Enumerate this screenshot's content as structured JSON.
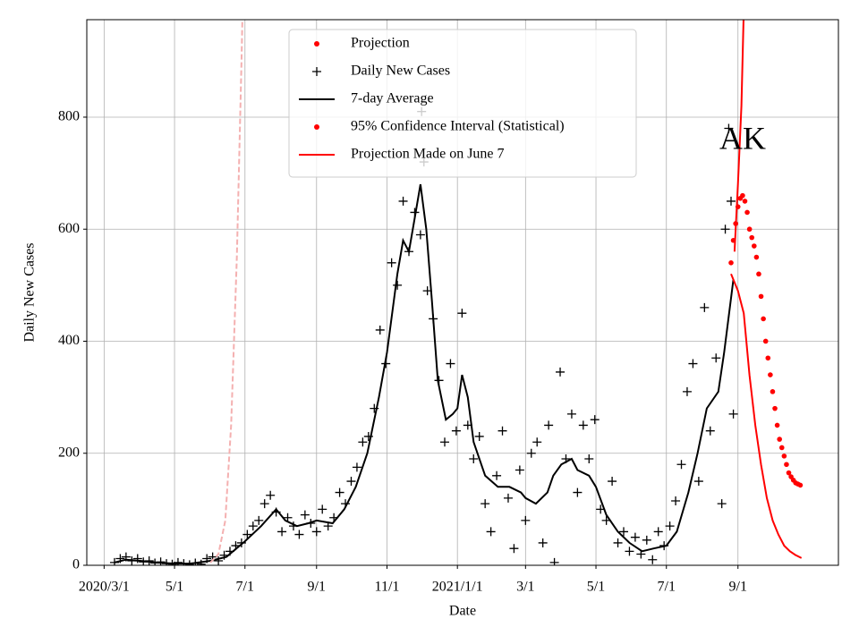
{
  "chart_data": {
    "type": "line",
    "xlabel": "Date",
    "ylabel": "Daily New Cases",
    "annotation": "AK",
    "grid": true,
    "legend": "upper center",
    "xlim": [
      "2020-02-15",
      "2021-11-27"
    ],
    "ylim": [
      0,
      974
    ],
    "yticks": [
      0,
      200,
      400,
      600,
      800
    ],
    "xticks": [
      {
        "value": "2020-03-01",
        "label": "2020/3/1"
      },
      {
        "value": "2020-05-01",
        "label": "5/1"
      },
      {
        "value": "2020-07-01",
        "label": "7/1"
      },
      {
        "value": "2020-09-01",
        "label": "9/1"
      },
      {
        "value": "2020-11-01",
        "label": "11/1"
      },
      {
        "value": "2021-01-01",
        "label": "2021/1/1"
      },
      {
        "value": "2021-03-01",
        "label": "3/1"
      },
      {
        "value": "2021-05-01",
        "label": "5/1"
      },
      {
        "value": "2021-07-01",
        "label": "7/1"
      },
      {
        "value": "2021-09-01",
        "label": "9/1"
      }
    ],
    "series": [
      {
        "name": "Projection",
        "color": "#ff0000",
        "kind": "marker",
        "marker": "dot",
        "x": [
          "2021-08-26",
          "2021-08-28",
          "2021-08-30",
          "2021-09-01",
          "2021-09-03",
          "2021-09-05",
          "2021-09-07",
          "2021-09-09",
          "2021-09-11",
          "2021-09-13",
          "2021-09-15",
          "2021-09-17",
          "2021-09-19",
          "2021-09-21",
          "2021-09-23",
          "2021-09-25",
          "2021-09-27",
          "2021-09-29",
          "2021-10-01",
          "2021-10-03",
          "2021-10-05",
          "2021-10-07",
          "2021-10-09",
          "2021-10-11",
          "2021-10-13",
          "2021-10-15",
          "2021-10-17",
          "2021-10-19",
          "2021-10-21",
          "2021-10-23",
          "2021-10-25"
        ],
        "values": [
          540,
          580,
          610,
          640,
          655,
          660,
          650,
          630,
          600,
          585,
          570,
          550,
          520,
          480,
          440,
          400,
          370,
          340,
          310,
          280,
          250,
          225,
          210,
          195,
          180,
          165,
          158,
          152,
          147,
          145,
          143
        ]
      },
      {
        "name": "Daily New Cases",
        "color": "#000000",
        "kind": "marker",
        "marker": "plus",
        "x": [
          "2020-03-10",
          "2020-03-15",
          "2020-03-20",
          "2020-03-25",
          "2020-03-30",
          "2020-04-04",
          "2020-04-09",
          "2020-04-14",
          "2020-04-19",
          "2020-04-24",
          "2020-04-29",
          "2020-05-04",
          "2020-05-09",
          "2020-05-14",
          "2020-05-19",
          "2020-05-24",
          "2020-05-29",
          "2020-06-03",
          "2020-06-08",
          "2020-06-13",
          "2020-06-18",
          "2020-06-23",
          "2020-06-28",
          "2020-07-03",
          "2020-07-08",
          "2020-07-13",
          "2020-07-18",
          "2020-07-23",
          "2020-07-28",
          "2020-08-02",
          "2020-08-07",
          "2020-08-12",
          "2020-08-17",
          "2020-08-22",
          "2020-08-27",
          "2020-09-01",
          "2020-09-06",
          "2020-09-11",
          "2020-09-16",
          "2020-09-21",
          "2020-09-26",
          "2020-10-01",
          "2020-10-06",
          "2020-10-11",
          "2020-10-16",
          "2020-10-21",
          "2020-10-26",
          "2020-10-31",
          "2020-11-05",
          "2020-11-10",
          "2020-11-15",
          "2020-11-20",
          "2020-11-25",
          "2020-11-30",
          "2020-12-01",
          "2020-12-03",
          "2020-12-06",
          "2020-12-11",
          "2020-12-16",
          "2020-12-21",
          "2020-12-26",
          "2020-12-31",
          "2021-01-05",
          "2021-01-10",
          "2021-01-15",
          "2021-01-20",
          "2021-01-25",
          "2021-01-30",
          "2021-02-04",
          "2021-02-09",
          "2021-02-14",
          "2021-02-19",
          "2021-02-24",
          "2021-03-01",
          "2021-03-06",
          "2021-03-11",
          "2021-03-16",
          "2021-03-21",
          "2021-03-26",
          "2021-03-31",
          "2021-04-05",
          "2021-04-10",
          "2021-04-15",
          "2021-04-20",
          "2021-04-25",
          "2021-04-30",
          "2021-05-05",
          "2021-05-10",
          "2021-05-15",
          "2021-05-20",
          "2021-05-25",
          "2021-05-30",
          "2021-06-04",
          "2021-06-09",
          "2021-06-14",
          "2021-06-19",
          "2021-06-24",
          "2021-06-29",
          "2021-07-04",
          "2021-07-09",
          "2021-07-14",
          "2021-07-19",
          "2021-07-24",
          "2021-07-29",
          "2021-08-03",
          "2021-08-08",
          "2021-08-13",
          "2021-08-18",
          "2021-08-21",
          "2021-08-24",
          "2021-08-26",
          "2021-08-28"
        ],
        "values": [
          5,
          12,
          15,
          8,
          12,
          6,
          8,
          4,
          6,
          3,
          2,
          5,
          3,
          1,
          4,
          2,
          12,
          15,
          8,
          18,
          25,
          35,
          40,
          55,
          70,
          80,
          110,
          125,
          95,
          60,
          85,
          70,
          55,
          90,
          75,
          60,
          100,
          70,
          85,
          130,
          110,
          150,
          175,
          220,
          230,
          280,
          420,
          360,
          540,
          500,
          650,
          560,
          630,
          590,
          810,
          720,
          490,
          440,
          330,
          220,
          360,
          240,
          450,
          250,
          190,
          230,
          110,
          60,
          160,
          240,
          120,
          30,
          170,
          80,
          200,
          220,
          40,
          250,
          5,
          345,
          190,
          270,
          130,
          250,
          190,
          260,
          100,
          80,
          150,
          40,
          60,
          25,
          50,
          20,
          45,
          10,
          60,
          35,
          70,
          115,
          180,
          310,
          360,
          150,
          460,
          240,
          370,
          110,
          600,
          780,
          650,
          270
        ]
      },
      {
        "name": "7-day Average",
        "color": "#000000",
        "kind": "line",
        "x": [
          "2020-03-10",
          "2020-03-20",
          "2020-04-01",
          "2020-04-15",
          "2020-05-01",
          "2020-05-15",
          "2020-06-01",
          "2020-06-15",
          "2020-07-01",
          "2020-07-15",
          "2020-07-28",
          "2020-08-05",
          "2020-08-15",
          "2020-08-25",
          "2020-09-01",
          "2020-09-15",
          "2020-09-25",
          "2020-10-05",
          "2020-10-15",
          "2020-10-25",
          "2020-11-01",
          "2020-11-10",
          "2020-11-15",
          "2020-11-20",
          "2020-11-25",
          "2020-11-30",
          "2020-12-05",
          "2020-12-10",
          "2020-12-15",
          "2020-12-22",
          "2020-12-28",
          "2021-01-01",
          "2021-01-05",
          "2021-01-10",
          "2021-01-15",
          "2021-01-25",
          "2021-02-05",
          "2021-02-15",
          "2021-02-25",
          "2021-03-01",
          "2021-03-10",
          "2021-03-20",
          "2021-03-25",
          "2021-04-01",
          "2021-04-10",
          "2021-04-15",
          "2021-04-25",
          "2021-05-01",
          "2021-05-10",
          "2021-05-20",
          "2021-05-30",
          "2021-06-10",
          "2021-06-20",
          "2021-07-01",
          "2021-07-10",
          "2021-07-20",
          "2021-07-28",
          "2021-08-05",
          "2021-08-15",
          "2021-08-20",
          "2021-08-28"
        ],
        "values": [
          5,
          10,
          8,
          5,
          3,
          3,
          8,
          15,
          43,
          70,
          100,
          80,
          70,
          75,
          80,
          75,
          100,
          140,
          200,
          300,
          380,
          520,
          580,
          560,
          620,
          680,
          600,
          470,
          330,
          260,
          270,
          280,
          340,
          300,
          220,
          160,
          140,
          140,
          130,
          120,
          110,
          130,
          160,
          180,
          190,
          170,
          160,
          140,
          90,
          60,
          40,
          25,
          30,
          35,
          60,
          130,
          200,
          280,
          310,
          380,
          510
        ]
      },
      {
        "name": "95% Confidence Interval (Statistical)",
        "color": "#ff0000",
        "kind": "marker",
        "marker": "dot",
        "x": [],
        "values": []
      },
      {
        "name": "Projection Made on June 7",
        "color": "#ff0000",
        "kind": "line",
        "x": [
          "2021-08-26",
          "2021-09-01",
          "2021-09-06",
          "2021-09-11",
          "2021-09-16",
          "2021-09-21",
          "2021-09-26",
          "2021-10-01",
          "2021-10-06",
          "2021-10-11",
          "2021-10-16",
          "2021-10-21",
          "2021-10-26",
          "2021-08-29",
          "2021-08-29",
          "2021-09-01",
          "2021-09-04",
          "2021-09-06"
        ],
        "values": [
          520,
          490,
          450,
          340,
          250,
          180,
          120,
          80,
          55,
          35,
          25,
          18,
          13,
          null,
          560,
          680,
          820,
          990
        ]
      },
      {
        "color": "#f4b0b0",
        "kind": "line",
        "dash": true,
        "x": [
          "2020-06-01",
          "2020-06-08",
          "2020-06-14",
          "2020-06-19",
          "2020-06-24",
          "2020-06-28",
          "2020-06-30"
        ],
        "values": [
          5,
          20,
          80,
          250,
          550,
          900,
          1100
        ]
      }
    ]
  }
}
